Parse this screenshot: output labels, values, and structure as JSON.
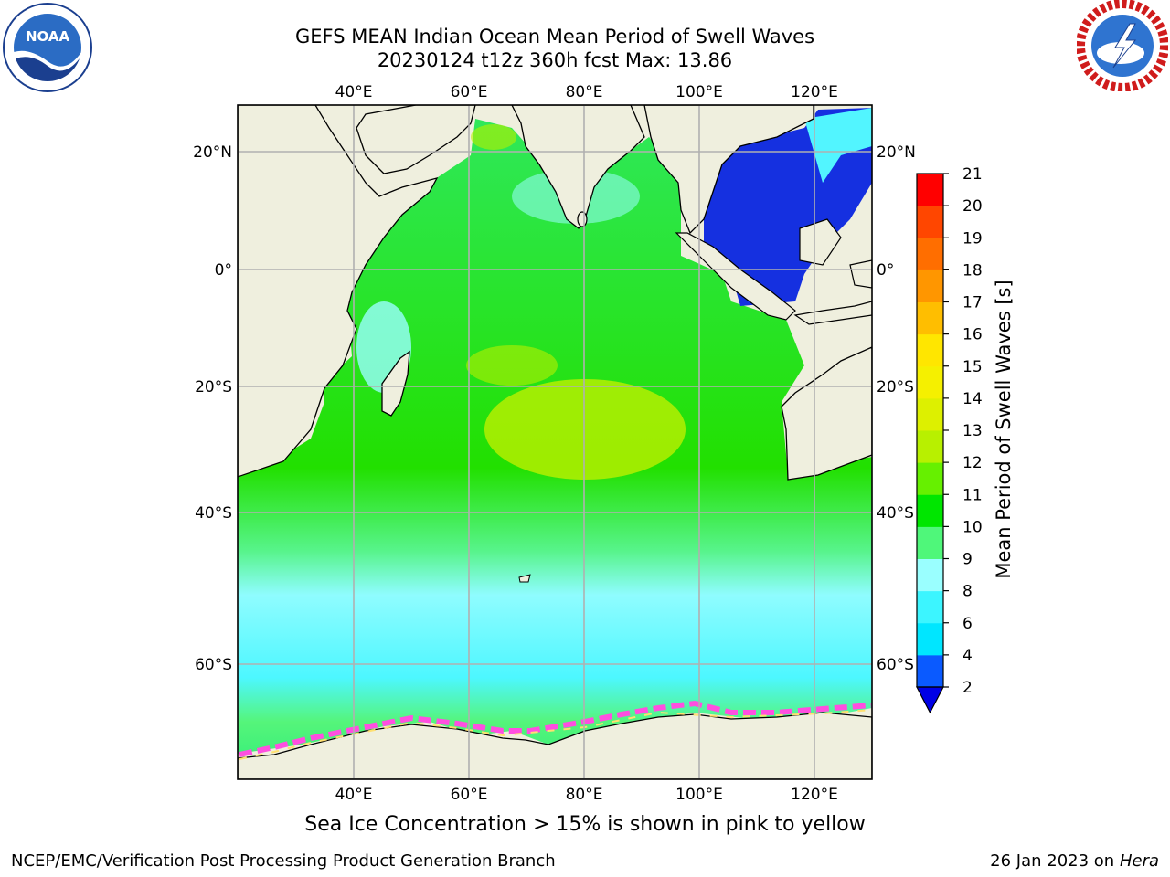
{
  "title": {
    "line1": "GEFS MEAN Indian Ocean Mean Period of Swell Waves",
    "line2": "20230124 t12z 360h fcst   Max: 13.86"
  },
  "logos": {
    "left": {
      "icon": "noaa-logo",
      "text": "NOAA"
    },
    "right": {
      "icon": "nws-logo"
    }
  },
  "map": {
    "lon_ticks": [
      "40°E",
      "60°E",
      "80°E",
      "100°E",
      "120°E"
    ],
    "lat_ticks_left": [
      "20°N",
      "0°",
      "20°S",
      "40°S",
      "60°S"
    ],
    "lat_ticks_right": [
      "20°N",
      "0°",
      "20°S",
      "40°S",
      "60°S"
    ],
    "grid": true
  },
  "colorbar": {
    "label": "Mean Period of Swell Waves [s]",
    "ticks": [
      "2",
      "4",
      "6",
      "8",
      "9",
      "10",
      "11",
      "12",
      "13",
      "14",
      "15",
      "16",
      "17",
      "18",
      "19",
      "20",
      "21"
    ],
    "colors": [
      "#0a5aff",
      "#00e6ff",
      "#3cf5ff",
      "#9affff",
      "#4ff77a",
      "#00e600",
      "#66f000",
      "#b8f000",
      "#ddf000",
      "#f5f000",
      "#ffe600",
      "#ffbe00",
      "#ff9600",
      "#ff6e00",
      "#ff4600",
      "#ff0000"
    ],
    "extend_color": "#0000e6"
  },
  "notes": {
    "ice": "Sea Ice Concentration > 15% is shown in pink to yellow"
  },
  "footer": {
    "left": "NCEP/EMC/Verification Post Processing Product Generation Branch",
    "right_date": "26 Jan 2023 on",
    "right_machine": "Hera"
  }
}
